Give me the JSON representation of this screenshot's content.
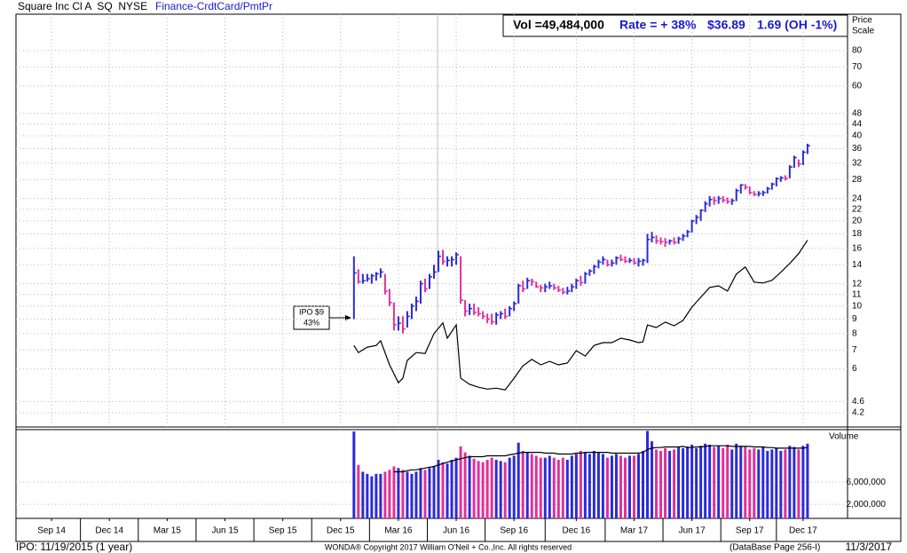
{
  "header": {
    "title": "Square Inc Cl A  SQ  NYSE",
    "group": "Finance-CrdtCard/PmtPr",
    "volume": "Vol =49,484,000",
    "rate": "Rate = + 38%",
    "price": "$36.89",
    "change": "1.69 (OH -1%)"
  },
  "footer": {
    "ipo": "IPO: 11/19/2015 (1 year)",
    "copyright": "WONDA® Copyright 2017 William O'Neil + Co.,Inc. All rights reserved",
    "page": "(DataBase Page 256-I)",
    "date": "11/3/2017"
  },
  "chart_data": [
    {
      "type": "ohlc",
      "y_label": [
        "Price",
        "Scale"
      ],
      "log_scale": true,
      "grid": true,
      "up_color": "#2b2bd6",
      "down_color": "#e0309a",
      "xlim": [
        -76,
        111
      ],
      "ylim": [
        3.74,
        107.6
      ],
      "yticks": [
        4.2,
        4.6,
        6,
        7,
        8,
        9,
        10,
        11,
        12,
        14,
        16,
        18,
        20,
        22,
        24,
        28,
        32,
        36,
        40,
        44,
        48,
        60,
        70,
        80
      ],
      "annotation": [
        "IPO $9",
        "43%"
      ],
      "high": [
        15,
        13.5,
        13,
        13,
        13,
        13.2,
        13.6,
        13,
        11.5,
        10.3,
        9.2,
        9.2,
        9.6,
        10.2,
        10.8,
        12.3,
        12.5,
        13,
        14,
        15.7,
        15.8,
        15,
        15,
        15.5,
        15,
        10.5,
        10.2,
        10.2,
        9.9,
        9.6,
        9.4,
        9.4,
        9.5,
        9.6,
        9.8,
        10,
        10.4,
        12,
        12.3,
        12.6,
        12.5,
        12.2,
        11.9,
        12,
        12.2,
        12,
        11.8,
        11.6,
        11.7,
        12,
        12.5,
        12.8,
        13.2,
        13.5,
        14,
        14.6,
        15,
        14.6,
        14.6,
        15,
        15.2,
        15,
        14.8,
        14.8,
        14.8,
        14.7,
        18,
        18.3,
        17.8,
        17.5,
        17.4,
        17.2,
        17.5,
        17.6,
        18,
        18.6,
        20.2,
        21,
        22,
        23.5,
        24.5,
        24.4,
        24.5,
        24.5,
        24.2,
        24,
        26,
        27,
        27,
        26.5,
        25.5,
        25.5,
        25.6,
        26.4,
        27.3,
        28.5,
        28.8,
        29,
        31.5,
        34,
        33,
        35.5,
        37.5
      ],
      "low": [
        9,
        12,
        12,
        12.2,
        12,
        12.3,
        12.6,
        11,
        10,
        8.2,
        8.2,
        8,
        8.4,
        9,
        9.6,
        10.2,
        11.2,
        11.5,
        12.5,
        13.2,
        14,
        13.8,
        13.8,
        14,
        10.2,
        9.2,
        9.3,
        9.3,
        9.2,
        9,
        8.7,
        8.6,
        8.6,
        9,
        9,
        9.2,
        9.6,
        10.2,
        11.2,
        11.5,
        11.8,
        11.6,
        11.2,
        11.2,
        11.5,
        11.4,
        11.2,
        11,
        11,
        11.2,
        11.5,
        11.8,
        12,
        12.8,
        13,
        13.6,
        14,
        13.8,
        13.8,
        14,
        14.4,
        14.2,
        14.2,
        14,
        13.8,
        13.9,
        14.2,
        16.8,
        16.6,
        16.5,
        16.2,
        16.5,
        16.5,
        16.6,
        17,
        17.5,
        18.2,
        19.5,
        20,
        21.5,
        22.5,
        22.8,
        23,
        23.2,
        23,
        22.8,
        23.5,
        25,
        25.8,
        24.8,
        24.5,
        24.4,
        24.5,
        25,
        25.8,
        26.5,
        27.5,
        27.8,
        28.3,
        30.8,
        31,
        31.5,
        34.5
      ],
      "close": [
        13.1,
        12.2,
        12.3,
        12.5,
        12.8,
        13,
        13.2,
        11.3,
        10.3,
        8.6,
        8.7,
        8.3,
        9.2,
        10,
        10.4,
        12,
        11.5,
        12.7,
        13.2,
        15,
        14.4,
        14.5,
        14.6,
        15.2,
        10.5,
        9.6,
        9.8,
        9.5,
        9.4,
        9.2,
        9,
        8.8,
        9.3,
        9.4,
        9.2,
        9.8,
        10.2,
        11.8,
        11.5,
        12.3,
        12.2,
        11.7,
        11.6,
        11.7,
        11.8,
        11.6,
        11.4,
        11.2,
        11.3,
        11.7,
        12.3,
        12.1,
        13,
        13.3,
        13.8,
        14.3,
        14.6,
        14,
        14.2,
        14.8,
        14.6,
        14.4,
        14.5,
        14.2,
        14.4,
        14.5,
        17.2,
        17.5,
        17,
        16.9,
        16.8,
        17,
        16.8,
        17.3,
        17.7,
        18.3,
        20,
        20.6,
        21.8,
        23,
        23.8,
        23.6,
        24,
        23.7,
        23.4,
        23.6,
        25.6,
        26.8,
        26.3,
        25.2,
        24.8,
        25,
        25.2,
        26,
        27,
        28.2,
        28.4,
        28.3,
        31,
        33.5,
        31.8,
        35,
        36.89
      ],
      "series": [
        {
          "color": "#000000",
          "x": [
            0,
            1,
            3,
            5,
            6,
            8,
            10,
            11,
            12,
            14,
            16,
            18,
            20,
            21,
            23,
            24,
            26,
            28,
            30,
            32,
            34,
            36,
            38,
            40,
            42,
            44,
            46,
            48,
            50,
            52,
            54,
            56,
            58,
            60,
            62,
            64,
            65,
            66,
            68,
            70,
            72,
            74,
            76,
            78,
            80,
            82,
            84,
            86,
            88,
            90,
            92,
            94,
            96,
            98,
            100,
            102
          ],
          "values": [
            7.26,
            6.85,
            7.16,
            7.26,
            7.54,
            6.2,
            5.36,
            5.56,
            6.43,
            6.85,
            6.8,
            7.99,
            8.72,
            7.7,
            8.58,
            5.56,
            5.29,
            5.17,
            5.09,
            5.13,
            5.06,
            5.56,
            6.15,
            6.48,
            6.2,
            6.38,
            6.2,
            6.29,
            6.96,
            6.66,
            7.26,
            7.43,
            7.43,
            7.7,
            7.59,
            7.43,
            7.48,
            8.58,
            8.4,
            8.78,
            8.52,
            8.9,
            9.92,
            10.75,
            11.64,
            11.8,
            11.3,
            12.98,
            13.75,
            12.16,
            12.07,
            12.34,
            13.17,
            14.15,
            15.33,
            17.1
          ]
        }
      ]
    },
    {
      "type": "bar",
      "y_label": "Volume",
      "log_scale": true,
      "xlim": [
        -76,
        111
      ],
      "ylim": [
        1000000,
        80000000
      ],
      "yticks": [
        {
          "value": 2000000,
          "label": "2,000,000"
        },
        {
          "value": 6000000,
          "label": "6,000,000"
        }
      ],
      "xticks": [
        {
          "value": -68,
          "label": "Sep 14"
        },
        {
          "value": -55,
          "label": "Dec 14"
        },
        {
          "value": -42,
          "label": "Mar 15"
        },
        {
          "value": -29,
          "label": "Jun 15"
        },
        {
          "value": -16,
          "label": "Sep 15"
        },
        {
          "value": -3,
          "label": "Dec 15"
        },
        {
          "value": 10,
          "label": "Mar 16"
        },
        {
          "value": 23,
          "label": "Jun 16"
        },
        {
          "value": 36,
          "label": "Sep 16"
        },
        {
          "value": 50,
          "label": "Dec 16"
        },
        {
          "value": 63,
          "label": "Mar 17"
        },
        {
          "value": 76,
          "label": "Jun 17"
        },
        {
          "value": 89,
          "label": "Sep 17"
        },
        {
          "value": 101,
          "label": "Dec 17"
        }
      ],
      "values": [
        73000000,
        14000000,
        10000000,
        9000000,
        8000000,
        9000000,
        9000000,
        10000000,
        11000000,
        13000000,
        12000000,
        11000000,
        10000000,
        9000000,
        10000000,
        12000000,
        11000000,
        12000000,
        13000000,
        18000000,
        16000000,
        15000000,
        18000000,
        20000000,
        35000000,
        26000000,
        22000000,
        19000000,
        17000000,
        16000000,
        18000000,
        20000000,
        18000000,
        17000000,
        16000000,
        20000000,
        22000000,
        42000000,
        28000000,
        26000000,
        24000000,
        22000000,
        20000000,
        20000000,
        22000000,
        20000000,
        18000000,
        20000000,
        18000000,
        22000000,
        24000000,
        28000000,
        26000000,
        24000000,
        28000000,
        26000000,
        24000000,
        20000000,
        22000000,
        24000000,
        22000000,
        20000000,
        22000000,
        22000000,
        24000000,
        28000000,
        75000000,
        45000000,
        30000000,
        28000000,
        32000000,
        28000000,
        30000000,
        34000000,
        32000000,
        35000000,
        38000000,
        32000000,
        36000000,
        40000000,
        38000000,
        34000000,
        36000000,
        32000000,
        38000000,
        30000000,
        40000000,
        36000000,
        34000000,
        30000000,
        32000000,
        30000000,
        34000000,
        28000000,
        30000000,
        32000000,
        28000000,
        30000000,
        36000000,
        34000000,
        30000000,
        36000000,
        40000000
      ],
      "series": [
        {
          "color": "#000000",
          "values": [
            null,
            null,
            null,
            null,
            null,
            null,
            null,
            null,
            null,
            10000000,
            10000000,
            10000000,
            10500000,
            11000000,
            11000000,
            11500000,
            12000000,
            12500000,
            13000000,
            14000000,
            15000000,
            16000000,
            17000000,
            18000000,
            19000000,
            20000000,
            21000000,
            21000000,
            21000000,
            21000000,
            22000000,
            22000000,
            22000000,
            22000000,
            22000000,
            23000000,
            24000000,
            25000000,
            26000000,
            26000000,
            26000000,
            26000000,
            26000000,
            25000000,
            25000000,
            25000000,
            24000000,
            24000000,
            24000000,
            24000000,
            25000000,
            25000000,
            26000000,
            26000000,
            26000000,
            26000000,
            26000000,
            26000000,
            25000000,
            25000000,
            25000000,
            25000000,
            25000000,
            25000000,
            25000000,
            26000000,
            30000000,
            32000000,
            33000000,
            33000000,
            34000000,
            34000000,
            34000000,
            34000000,
            35000000,
            33000000,
            33000000,
            34000000,
            34000000,
            35000000,
            36000000,
            36000000,
            36000000,
            36000000,
            36000000,
            35000000,
            35000000,
            35000000,
            35000000,
            35000000,
            34000000,
            34000000,
            34000000,
            33000000,
            33000000,
            32000000,
            32000000,
            32000000,
            32000000,
            32000000,
            32000000,
            32000000,
            33000000
          ]
        }
      ]
    }
  ]
}
